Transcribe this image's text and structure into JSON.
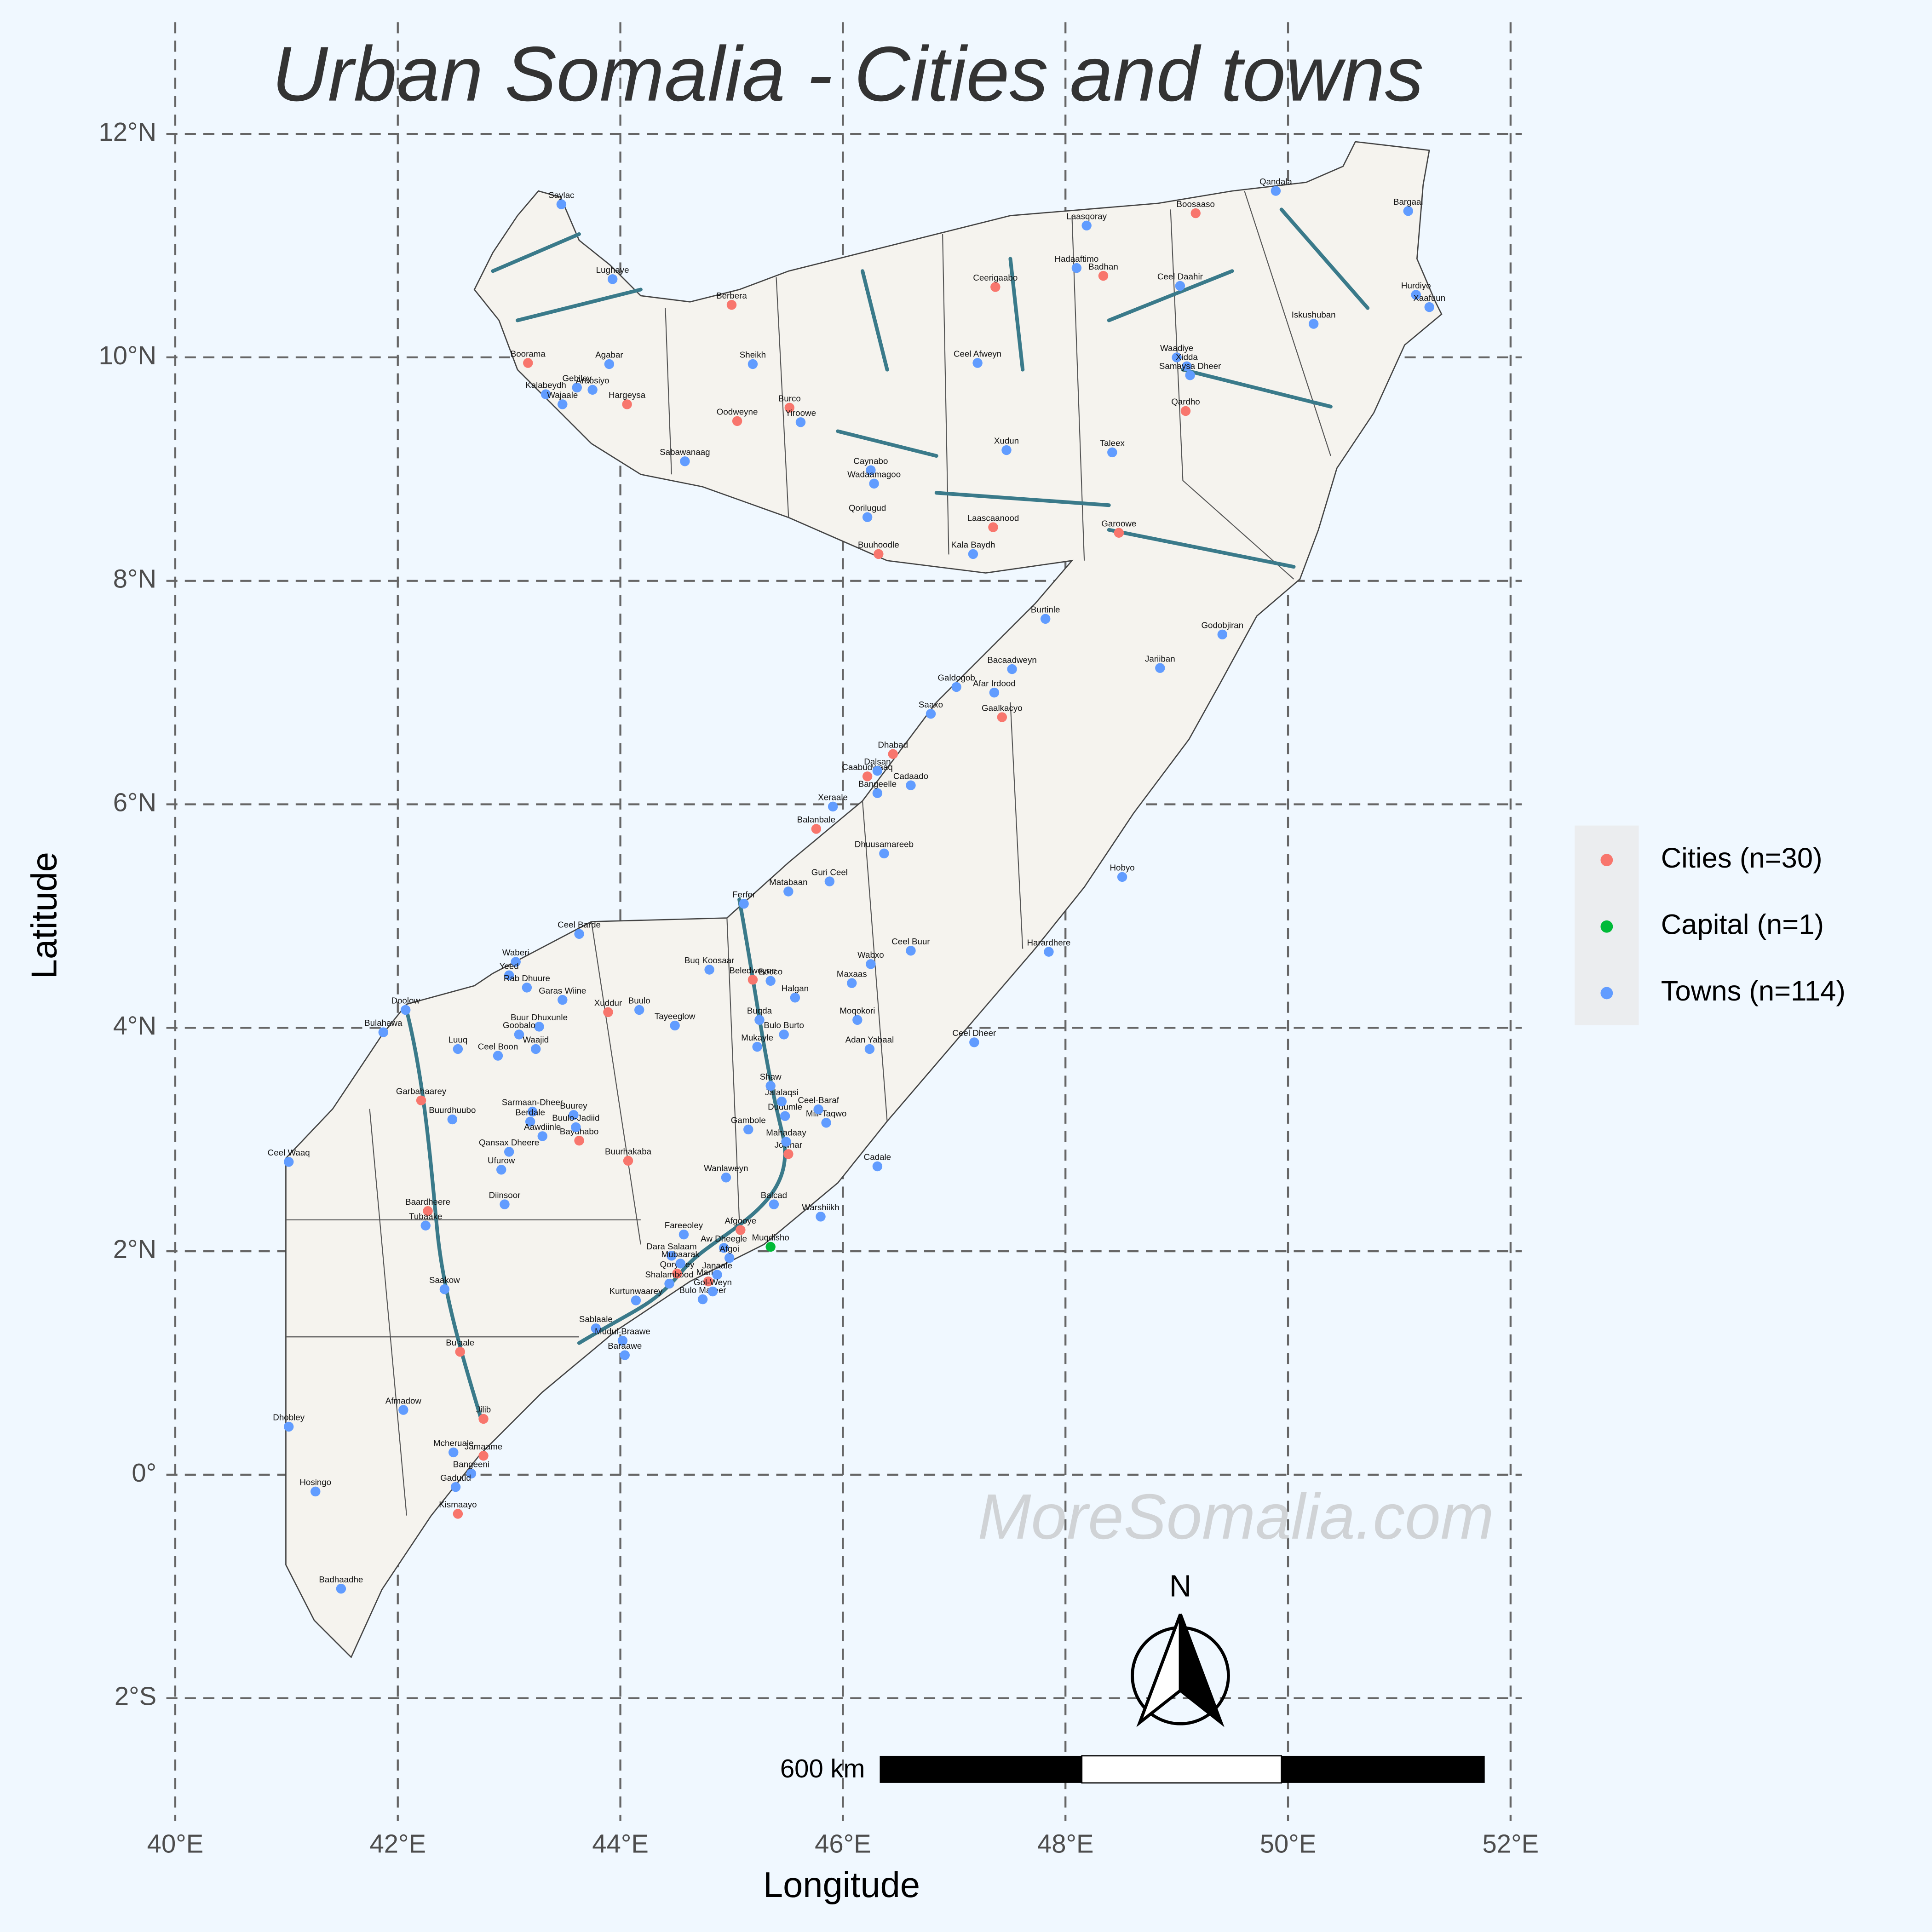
{
  "chart_data": {
    "type": "map",
    "title": "Urban Somalia - Cities and towns",
    "x_label": "Longitude",
    "y_label": "Latitude",
    "xlim": [
      39.92,
      52.1
    ],
    "ylim": [
      -3.1,
      13.0
    ],
    "xticks": [
      {
        "value": 40,
        "label": "40°E"
      },
      {
        "value": 42,
        "label": "42°E"
      },
      {
        "value": 44,
        "label": "44°E"
      },
      {
        "value": 46,
        "label": "46°E"
      },
      {
        "value": 48,
        "label": "48°E"
      },
      {
        "value": 50,
        "label": "50°E"
      },
      {
        "value": 52,
        "label": "52°E"
      }
    ],
    "yticks": [
      {
        "value": 12,
        "label": "12°N"
      },
      {
        "value": 10,
        "label": "10°N"
      },
      {
        "value": 8,
        "label": "8°N"
      },
      {
        "value": 6,
        "label": "6°N"
      },
      {
        "value": 4,
        "label": "4°N"
      },
      {
        "value": 2,
        "label": "2°N"
      },
      {
        "value": 0,
        "label": "0°"
      },
      {
        "value": -2,
        "label": "2°S"
      }
    ],
    "grid": true,
    "legend_position": "right",
    "watermark": "MoreSomalia.com",
    "north_label": "N",
    "scale_bar_label": "600 km",
    "series": [
      {
        "name": "Cities (n=30)",
        "color": "#F8766D",
        "labels": [
          "Berbera",
          "Boorama",
          "Hargeysa",
          "Oodweyne",
          "Burco",
          "Buuhoodle",
          "Ceerigaabo",
          "Badhan",
          "Laascaanood",
          "Garoowe",
          "Boosaaso",
          "Qardho",
          "Gaalkacyo",
          "Dhabad",
          "Caabudwaaq",
          "Balanbale",
          "Beledweyne",
          "Xuddur",
          "Garbahaarey",
          "Baydhabo",
          "Buurhakaba",
          "Baardheere",
          "Bu'aale",
          "Jilib",
          "Jamaame",
          "Kismaayo",
          "Afgooye",
          "Jowhar",
          "Qoryoley",
          "Marka"
        ],
        "x": [
          45.0,
          43.17,
          44.06,
          45.05,
          45.52,
          46.32,
          47.37,
          48.34,
          47.35,
          48.48,
          49.17,
          49.08,
          47.43,
          46.45,
          46.22,
          45.76,
          45.19,
          43.89,
          42.21,
          43.63,
          44.07,
          42.27,
          42.56,
          42.77,
          42.77,
          42.54,
          45.08,
          45.51,
          44.51,
          44.79
        ],
        "y": [
          10.47,
          9.95,
          9.58,
          9.43,
          9.55,
          8.24,
          10.63,
          10.73,
          8.48,
          8.43,
          11.29,
          9.52,
          6.78,
          6.45,
          6.25,
          5.78,
          4.43,
          4.14,
          3.35,
          2.99,
          2.81,
          2.36,
          1.1,
          0.5,
          0.17,
          -0.35,
          2.19,
          2.87,
          1.8,
          1.73
        ]
      },
      {
        "name": "Capital (n=1)",
        "color": "#00BA38",
        "labels": [
          "Muqdisho"
        ],
        "x": [
          45.35
        ],
        "y": [
          2.04
        ]
      },
      {
        "name": "Towns (n=114)",
        "color": "#619CFF",
        "labels": [
          "Saylac",
          "Lughaye",
          "Agabar",
          "Gebiley",
          "Kalabeydh",
          "Wajaale",
          "Arabsiyo",
          "Sheikh",
          "Yiroowe",
          "Sabawanaag",
          "Caynabo",
          "Wadaamagoo",
          "Qorilugud",
          "Laasqoray",
          "Hadaaftimo",
          "Ceel Afweyn",
          "Xudun",
          "Kala Baydh",
          "Taleex",
          "Qandala",
          "Bargaal",
          "Ceel Daahir",
          "Hurdiyo",
          "Xaafuun",
          "Iskushuban",
          "Waadiye",
          "Xidda",
          "Samaysa Dheer",
          "Burtinle",
          "Godobjiran",
          "Jariiban",
          "Bacaadweyn",
          "Galdogob",
          "Afar Irdood",
          "Saaxo",
          "Dalsan",
          "Bangeelle",
          "Cadaado",
          "Xeraale",
          "Dhuusamareeb",
          "Guri Ceel",
          "Matabaan",
          "Hobyo",
          "Ferfer",
          "Harardhere",
          "Ceel Buur",
          "Wabxo",
          "Maxaas",
          "Bocco",
          "Halgan",
          "Moqokori",
          "Buqda",
          "Bulo Burto",
          "Mukayle",
          "Adan Yabaal",
          "Ceel Dheer",
          "Ceel Barde",
          "Buq Koosaar",
          "Tayeeglow",
          "Buulo",
          "Waberi",
          "Yeed",
          "Rab Dhuure",
          "Garas Wiine",
          "Buur Dhuxunle",
          "Goobalo",
          "Waajid",
          "Ceel Boon",
          "Doolow",
          "Bulahawa",
          "Luuq",
          "Buurdhuubo",
          "Sarmaan-Dheer",
          "Buurey",
          "Berdale",
          "Buulo-Jadiid",
          "Aawdiinle",
          "Qansax Dheere",
          "Ufurow",
          "Ceel Waaq",
          "Tubaake",
          "Diinsoor",
          "Saakow",
          "Afmadow",
          "Mcheruale",
          "Bangeeni",
          "Gaduud",
          "Dhobley",
          "Hosingo",
          "Badhaadhe",
          "Sablaale",
          "Mudul-Braawe",
          "Baraawe",
          "Kurtunwaarey",
          "Bulo Mareer",
          "Shalambood",
          "Dara Salaam",
          "Mubaarak",
          "Janaale",
          "Gol-Weyn",
          "Aw Dheegle",
          "Afgoi",
          "Fareeoley",
          "Balcad",
          "Warshiikh",
          "Wanlaweyn",
          "Mahadaay",
          "Cadale",
          "Gambole",
          "Miil-Taqwo",
          "Ceel-Baraf",
          "Dudumle",
          "Jalalaqsi",
          "Shaw"
        ],
        "x": [
          43.47,
          43.93,
          43.9,
          43.61,
          43.33,
          43.48,
          43.75,
          45.19,
          45.62,
          44.58,
          46.25,
          46.28,
          46.22,
          48.19,
          48.1,
          47.21,
          47.47,
          47.17,
          48.42,
          49.89,
          51.08,
          49.03,
          51.15,
          51.27,
          50.23,
          49.0,
          49.09,
          49.12,
          47.82,
          49.41,
          48.85,
          47.52,
          47.02,
          47.36,
          46.79,
          46.31,
          46.31,
          46.61,
          45.91,
          46.37,
          45.88,
          45.51,
          48.51,
          45.11,
          47.85,
          46.61,
          46.25,
          46.08,
          45.35,
          45.57,
          46.13,
          45.25,
          45.47,
          45.23,
          46.24,
          47.18,
          43.63,
          44.8,
          44.49,
          44.17,
          43.06,
          43.0,
          43.16,
          43.48,
          43.27,
          43.09,
          43.24,
          42.9,
          42.07,
          41.87,
          42.54,
          42.49,
          43.21,
          43.58,
          43.19,
          43.6,
          43.3,
          43.0,
          42.93,
          41.02,
          42.25,
          42.96,
          42.42,
          42.05,
          42.5,
          42.66,
          42.52,
          41.02,
          41.26,
          41.49,
          43.78,
          44.02,
          44.04,
          44.14,
          44.74,
          44.44,
          44.46,
          44.54,
          44.87,
          44.83,
          44.93,
          44.98,
          44.57,
          45.38,
          45.8,
          44.95,
          45.49,
          46.31,
          45.15,
          45.85,
          45.78,
          45.48,
          45.45,
          45.35
        ],
        "y": [
          11.37,
          10.7,
          9.94,
          9.73,
          9.67,
          9.58,
          9.71,
          9.94,
          9.42,
          9.07,
          8.99,
          8.87,
          8.57,
          11.18,
          10.8,
          9.95,
          9.17,
          8.24,
          9.15,
          11.49,
          11.31,
          10.64,
          10.56,
          10.45,
          10.3,
          10.0,
          9.92,
          9.84,
          7.66,
          7.52,
          7.22,
          7.21,
          7.05,
          7.0,
          6.81,
          6.3,
          6.1,
          6.17,
          5.98,
          5.56,
          5.31,
          5.22,
          5.35,
          5.11,
          4.68,
          4.69,
          4.57,
          4.4,
          4.42,
          4.27,
          4.07,
          4.07,
          3.94,
          3.83,
          3.81,
          3.87,
          4.84,
          4.52,
          4.02,
          4.16,
          4.59,
          4.47,
          4.36,
          4.25,
          4.01,
          3.94,
          3.81,
          3.75,
          4.16,
          3.96,
          3.81,
          3.18,
          3.25,
          3.22,
          3.16,
          3.11,
          3.03,
          2.89,
          2.73,
          2.8,
          2.23,
          2.42,
          1.66,
          0.58,
          0.2,
          0.01,
          -0.11,
          0.43,
          -0.15,
          -1.02,
          1.31,
          1.2,
          1.07,
          1.56,
          1.57,
          1.71,
          1.96,
          1.89,
          1.79,
          1.64,
          2.03,
          1.94,
          2.15,
          2.42,
          2.31,
          2.66,
          2.98,
          2.76,
          3.09,
          3.15,
          3.27,
          3.21,
          3.34,
          3.48
        ]
      }
    ]
  }
}
